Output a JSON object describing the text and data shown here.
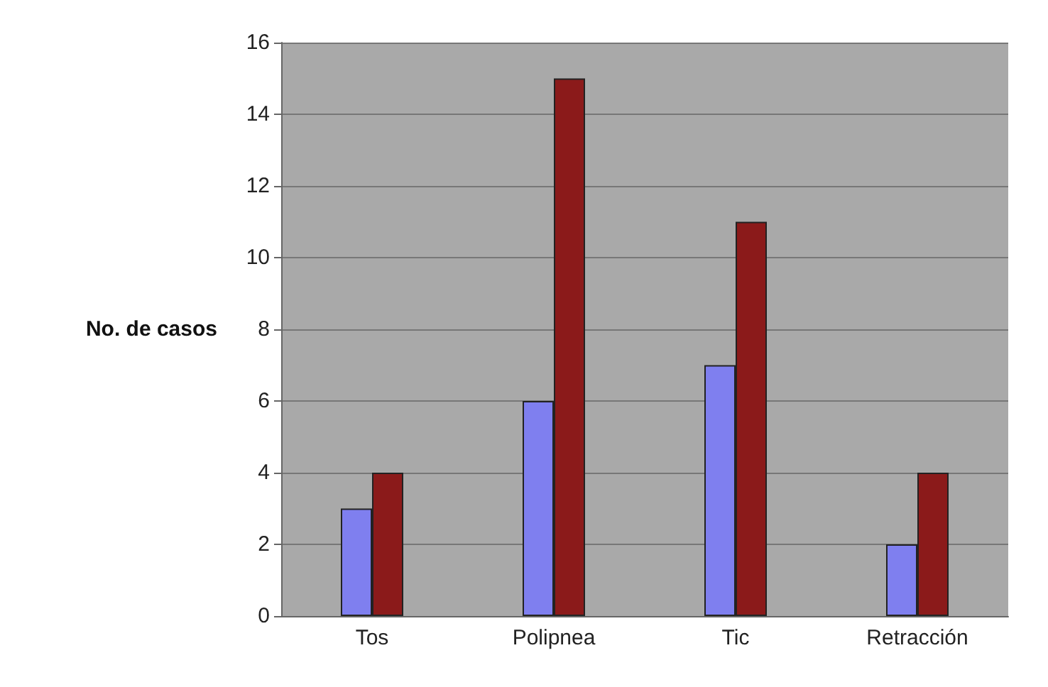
{
  "chart_data": {
    "type": "bar",
    "ylabel": "No. de casos",
    "categories": [
      "Tos",
      "Polipnea",
      "Tic",
      "Retracción"
    ],
    "series": [
      {
        "color": "#7f7fef",
        "values": [
          3,
          6,
          7,
          2
        ]
      },
      {
        "color": "#8b1a1a",
        "values": [
          4,
          15,
          11,
          4
        ]
      }
    ],
    "ylim": [
      0,
      16
    ],
    "yticks": [
      0,
      2,
      4,
      6,
      8,
      10,
      12,
      14,
      16
    ],
    "grid": "y"
  }
}
